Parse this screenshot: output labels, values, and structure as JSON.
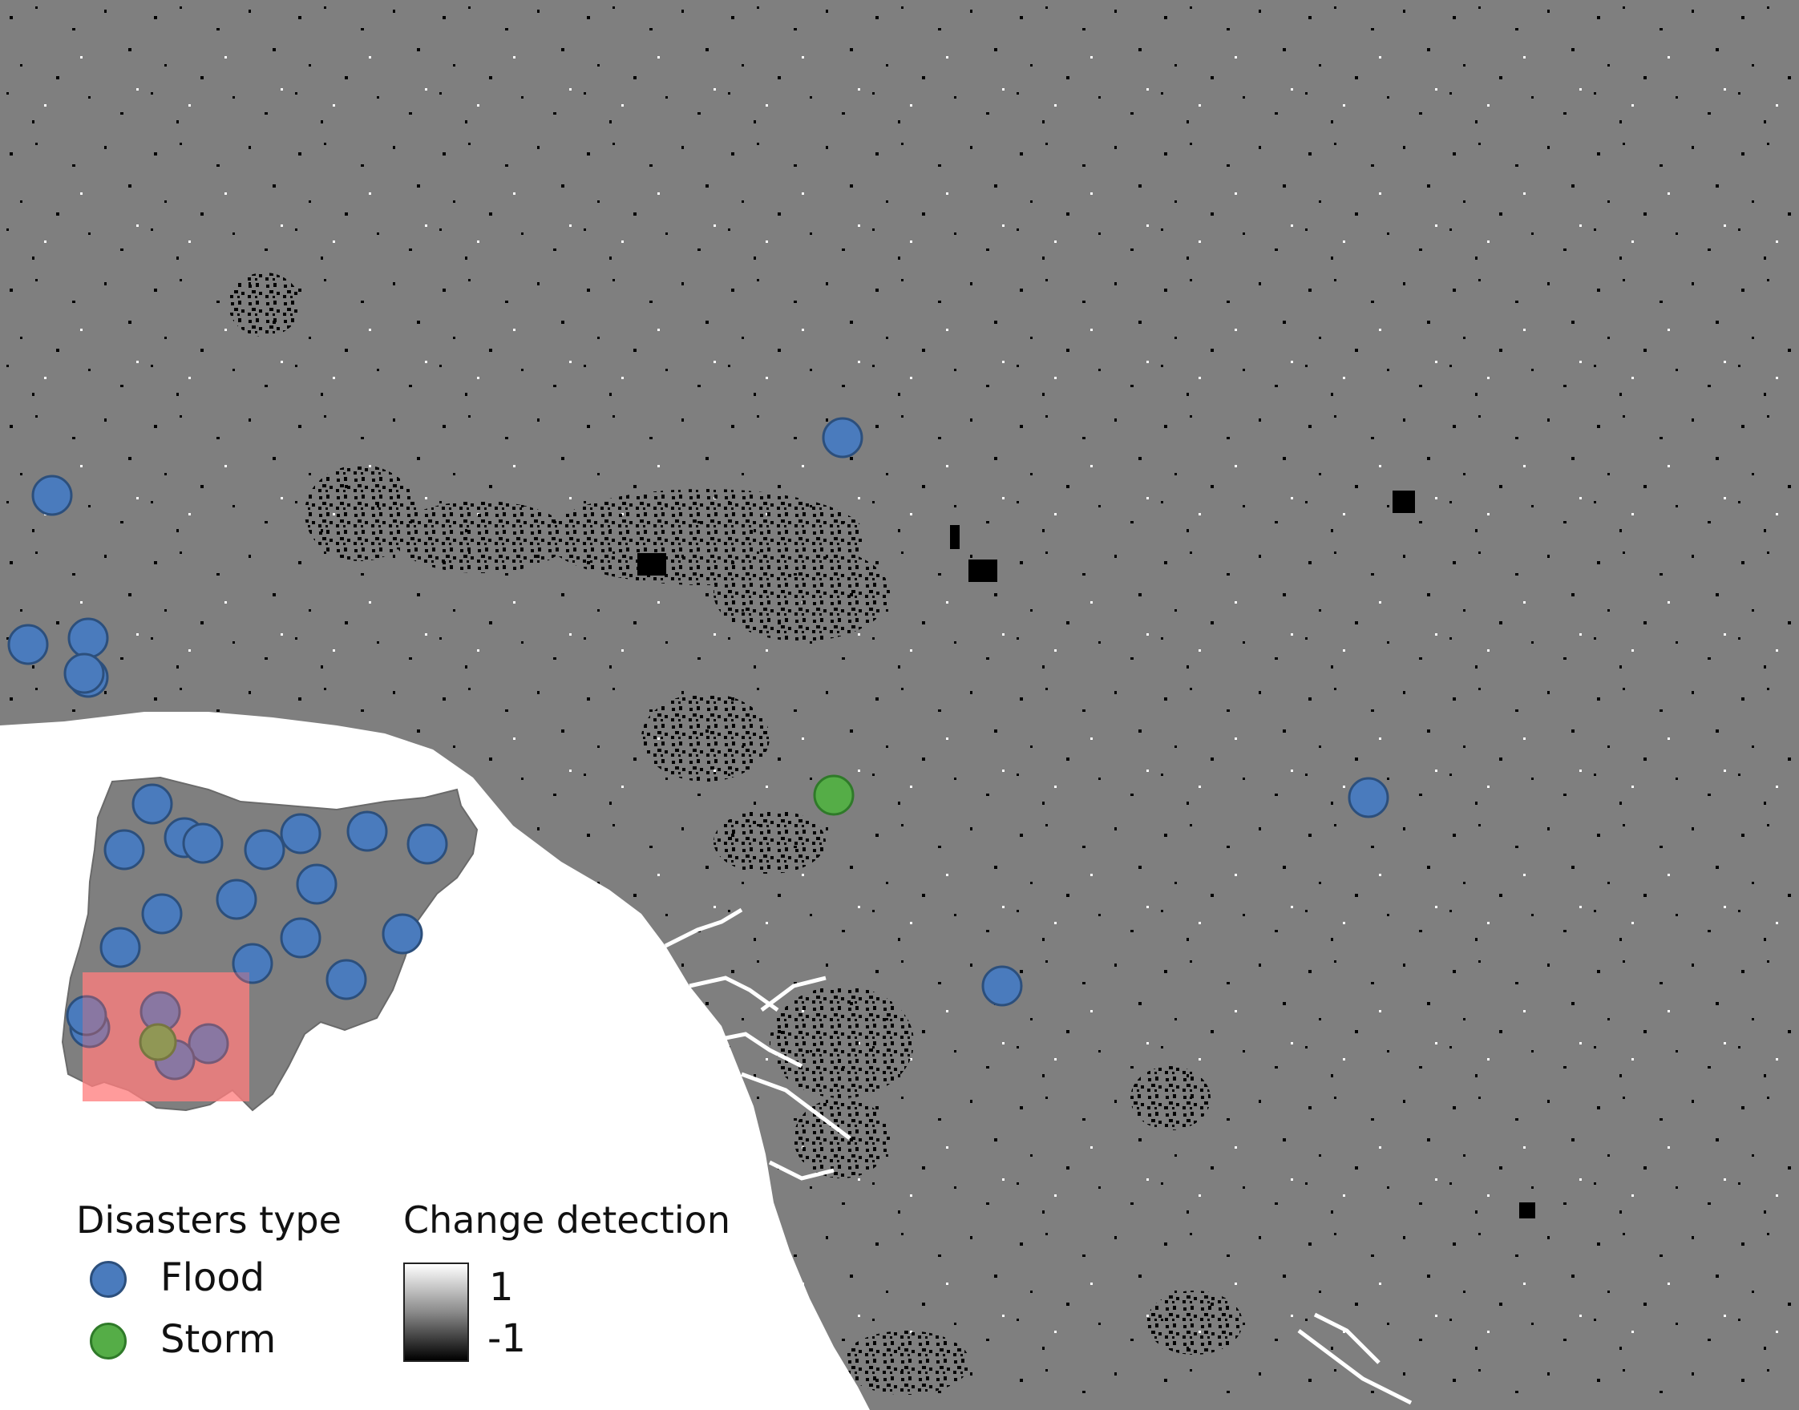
{
  "colors": {
    "map_background": "#7f7f7f",
    "sea": "#ffffff",
    "flood": "#4a7bbd",
    "flood_stroke": "#2c4f7c",
    "storm": "#55ad47",
    "storm_stroke": "#2f7a29",
    "inset_extent": "#ff8a8a",
    "change_positive": "#ffffff",
    "change_negative": "#000000"
  },
  "legend": {
    "disasters_title": "Disasters type",
    "flood_label": "Flood",
    "storm_label": "Storm",
    "change_title": "Change detection",
    "ramp_max": "1",
    "ramp_min": "-1",
    "flood_icon": "circle-marker-blue",
    "storm_icon": "circle-marker-green"
  }
}
